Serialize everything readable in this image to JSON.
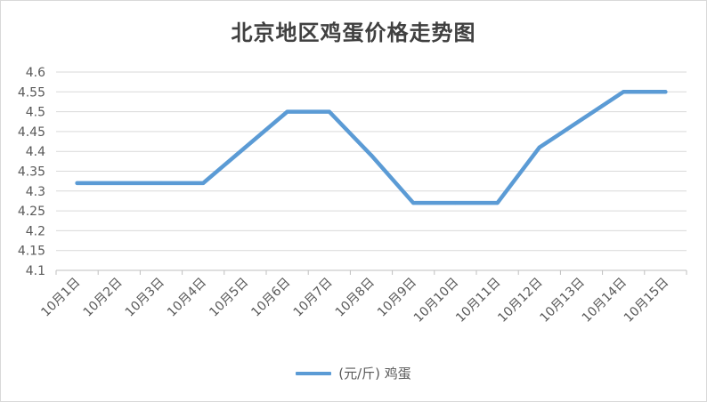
{
  "chart_data": {
    "type": "line",
    "title": "北京地区鸡蛋价格走势图",
    "categories": [
      "10月1日",
      "10月2日",
      "10月3日",
      "10月4日",
      "10月5日",
      "10月6日",
      "10月7日",
      "10月8日",
      "10月9日",
      "10月10日",
      "10月11日",
      "10月12日",
      "10月13日",
      "10月14日",
      "10月15日"
    ],
    "series": [
      {
        "name": "(元/斤) 鸡蛋",
        "values": [
          4.32,
          4.32,
          4.32,
          4.32,
          4.41,
          4.5,
          4.5,
          4.39,
          4.27,
          4.27,
          4.27,
          4.41,
          4.48,
          4.55,
          4.55
        ],
        "color": "#5b9bd5"
      }
    ],
    "yticks": [
      "4.1",
      "4.15",
      "4.2",
      "4.25",
      "4.3",
      "4.35",
      "4.4",
      "4.45",
      "4.5",
      "4.55",
      "4.6"
    ],
    "ylim": [
      4.1,
      4.6
    ],
    "grid": true,
    "legend": "bottom",
    "gridColor": "#d9d9d9"
  }
}
